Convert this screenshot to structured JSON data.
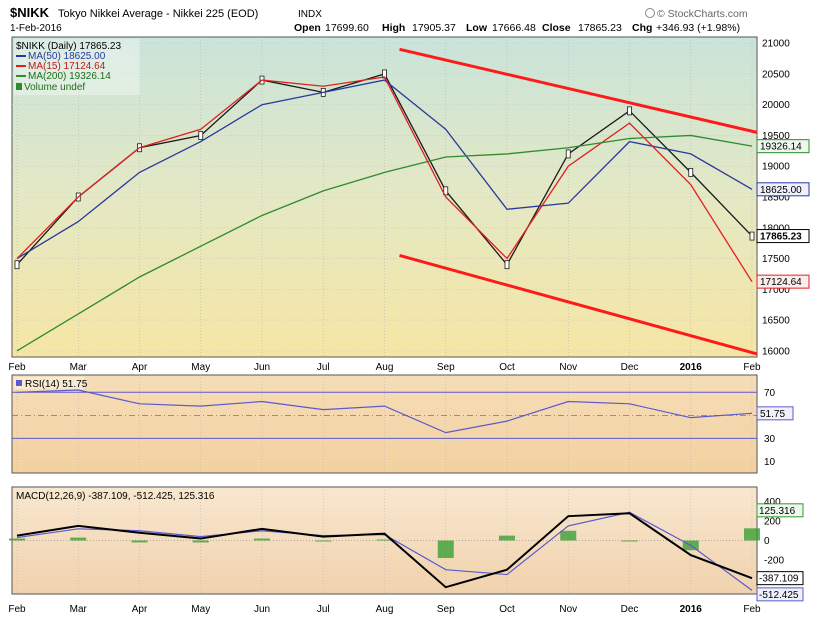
{
  "header": {
    "symbol": "$NIKK",
    "name": "Tokyo Nikkei Average - Nikkei 225 (EOD)",
    "exchange": "INDX",
    "date": "1-Feb-2016",
    "open_label": "Open",
    "open": "17699.60",
    "high_label": "High",
    "high": "17905.37",
    "low_label": "Low",
    "low": "17666.48",
    "close_label": "Close",
    "close": "17865.23",
    "chg_label": "Chg",
    "chg": "+346.93 (+1.98%)",
    "brand": "© StockCharts.com"
  },
  "legend": {
    "price": "$NIKK (Daily) 17865.23",
    "ma50": "MA(50) 18625.00",
    "ma15": "MA(15) 17124.64",
    "ma200": "MA(200) 19326.14",
    "volume": "Volume undef"
  },
  "colors": {
    "ma50": "#2a3a9c",
    "ma15": "#e02020",
    "ma200": "#2e8b2e",
    "trend": "#ff1a1a",
    "rsi": "#5a5acd",
    "macd": "#000000",
    "signal": "#5a5acd",
    "hist": "#2e9b2e"
  },
  "x_labels": [
    "Feb",
    "Mar",
    "Apr",
    "May",
    "Jun",
    "Jul",
    "Aug",
    "Sep",
    "Oct",
    "Nov",
    "Dec",
    "2016",
    "Feb"
  ],
  "price_ticks": [
    "21000",
    "20500",
    "20000",
    "19500",
    "19000",
    "18500",
    "18000",
    "17500",
    "17000",
    "16500",
    "16000"
  ],
  "price_tags": {
    "ma200": "19326.14",
    "ma50": "18625.00",
    "close": "17865.23",
    "ma15": "17124.64"
  },
  "rsi": {
    "label": "RSI(14) 51.75",
    "ticks": [
      "70",
      "50",
      "30",
      "10"
    ],
    "value": "51.75"
  },
  "macd": {
    "label": "MACD(12,26,9) -387.109, -512.425, 125.316",
    "ticks": [
      "400",
      "200",
      "0",
      "-200",
      "-400"
    ],
    "hist_tag": "125.316",
    "macd_tag": "-387.109",
    "signal_tag": "-512.425"
  },
  "chart_data": {
    "type": "line",
    "title": "$NIKK Tokyo Nikkei Average - Nikkei 225 (EOD)",
    "x": [
      "Feb",
      "Mar",
      "Apr",
      "May",
      "Jun",
      "Jul",
      "Aug",
      "Sep",
      "Oct",
      "Nov",
      "Dec",
      "2016",
      "Feb"
    ],
    "ylim": [
      15900,
      21100
    ],
    "series": [
      {
        "name": "$NIKK (Daily)",
        "values": [
          17400,
          18500,
          19300,
          19500,
          20400,
          20200,
          20500,
          18600,
          17400,
          19200,
          19900,
          18900,
          17865
        ]
      },
      {
        "name": "MA(50)",
        "values": [
          17500,
          18100,
          18900,
          19400,
          20000,
          20200,
          20400,
          19600,
          18300,
          18400,
          19400,
          19200,
          18625
        ]
      },
      {
        "name": "MA(15)",
        "values": [
          17500,
          18500,
          19300,
          19600,
          20400,
          20300,
          20450,
          18500,
          17500,
          19000,
          19700,
          18700,
          17124
        ]
      },
      {
        "name": "MA(200)",
        "values": [
          16000,
          16600,
          17200,
          17700,
          18200,
          18600,
          18900,
          19150,
          19200,
          19300,
          19450,
          19500,
          19326
        ]
      }
    ],
    "rsi_series": {
      "name": "RSI(14)",
      "ylim": [
        0,
        85
      ],
      "values": [
        70,
        72,
        60,
        58,
        62,
        55,
        58,
        35,
        45,
        62,
        60,
        48,
        51.75
      ]
    },
    "macd_series": {
      "ylim": [
        -550,
        550
      ],
      "macd": [
        50,
        150,
        80,
        20,
        120,
        40,
        70,
        -480,
        -300,
        250,
        280,
        -150,
        -387.109
      ],
      "signal": [
        30,
        120,
        100,
        40,
        100,
        50,
        60,
        -300,
        -350,
        150,
        290,
        -50,
        -512.425
      ]
    },
    "trendlines": [
      {
        "from": [
          "Aug",
          20900
        ],
        "to": [
          "Feb",
          19550
        ]
      },
      {
        "from": [
          "Aug",
          17550
        ],
        "to": [
          "Feb",
          15950
        ]
      }
    ]
  }
}
